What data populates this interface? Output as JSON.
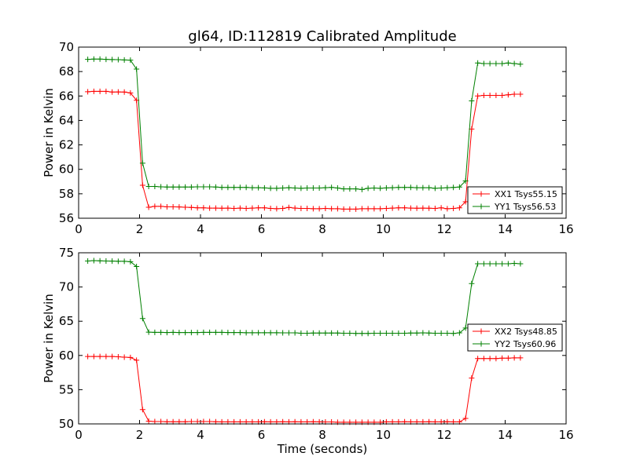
{
  "title": "gl64, ID:112819 Calibrated Amplitude",
  "xlabel": "Time (seconds)",
  "chart_data": [
    {
      "type": "line",
      "ylabel": "Power in Kelvin",
      "xlim": [
        0,
        16
      ],
      "ylim": [
        56,
        70
      ],
      "xticks": [
        "0",
        "2",
        "4",
        "6",
        "8",
        "10",
        "12",
        "14",
        "16"
      ],
      "yticks": [
        "56",
        "58",
        "60",
        "62",
        "64",
        "66",
        "68",
        "70"
      ],
      "legend_position": "lower-right",
      "x": [
        0.3,
        0.5,
        0.7,
        0.9,
        1.1,
        1.3,
        1.5,
        1.7,
        1.9,
        2.1,
        2.3,
        2.5,
        2.7,
        2.9,
        3.1,
        3.3,
        3.5,
        3.7,
        3.9,
        4.1,
        4.3,
        4.5,
        4.7,
        4.9,
        5.1,
        5.3,
        5.5,
        5.7,
        5.9,
        6.1,
        6.3,
        6.5,
        6.7,
        6.9,
        7.1,
        7.3,
        7.5,
        7.7,
        7.9,
        8.1,
        8.3,
        8.5,
        8.7,
        8.9,
        9.1,
        9.3,
        9.5,
        9.7,
        9.9,
        10.1,
        10.3,
        10.5,
        10.7,
        10.9,
        11.1,
        11.3,
        11.5,
        11.7,
        11.9,
        12.1,
        12.3,
        12.5,
        12.7,
        12.9,
        13.1,
        13.3,
        13.5,
        13.7,
        13.9,
        14.1,
        14.3,
        14.5
      ],
      "series": [
        {
          "name": "XX1 Tsys55.15",
          "color": "#ff0000",
          "values": [
            66.35,
            66.38,
            66.38,
            66.38,
            66.32,
            66.33,
            66.32,
            66.25,
            65.65,
            58.7,
            56.9,
            56.97,
            56.97,
            56.93,
            56.93,
            56.92,
            56.9,
            56.88,
            56.85,
            56.85,
            56.83,
            56.83,
            56.82,
            56.83,
            56.8,
            56.83,
            56.8,
            56.83,
            56.85,
            56.85,
            56.8,
            56.78,
            56.8,
            56.88,
            56.83,
            56.8,
            56.8,
            56.78,
            56.78,
            56.8,
            56.78,
            56.78,
            56.75,
            56.75,
            56.75,
            56.78,
            56.78,
            56.78,
            56.78,
            56.8,
            56.83,
            56.85,
            56.85,
            56.83,
            56.82,
            56.83,
            56.82,
            56.8,
            56.85,
            56.78,
            56.8,
            56.85,
            57.35,
            63.3,
            66.0,
            66.05,
            66.05,
            66.05,
            66.05,
            66.1,
            66.15,
            66.15
          ]
        },
        {
          "name": "YY1 Tsys56.53",
          "color": "#008000",
          "values": [
            69.0,
            69.02,
            69.02,
            69.0,
            68.98,
            68.97,
            68.95,
            68.93,
            68.2,
            60.5,
            58.6,
            58.6,
            58.57,
            58.55,
            58.55,
            58.55,
            58.55,
            58.55,
            58.57,
            58.57,
            58.57,
            58.55,
            58.52,
            58.52,
            58.52,
            58.52,
            58.52,
            58.5,
            58.5,
            58.48,
            58.45,
            58.45,
            58.47,
            58.5,
            58.47,
            58.45,
            58.47,
            58.47,
            58.47,
            58.5,
            58.52,
            58.47,
            58.4,
            58.4,
            58.4,
            58.35,
            58.45,
            58.47,
            58.45,
            58.48,
            58.5,
            58.52,
            58.52,
            58.52,
            58.5,
            58.5,
            58.5,
            58.45,
            58.47,
            58.5,
            58.52,
            58.55,
            59.05,
            65.6,
            68.7,
            68.65,
            68.65,
            68.65,
            68.65,
            68.7,
            68.65,
            68.6
          ]
        }
      ]
    },
    {
      "type": "line",
      "ylabel": "Power in Kelvin",
      "xlim": [
        0,
        16
      ],
      "ylim": [
        50,
        75
      ],
      "xticks": [
        "0",
        "2",
        "4",
        "6",
        "8",
        "10",
        "12",
        "14",
        "16"
      ],
      "yticks": [
        "50",
        "55",
        "60",
        "65",
        "70",
        "75"
      ],
      "legend_position": "center-right",
      "x": [
        0.3,
        0.5,
        0.7,
        0.9,
        1.1,
        1.3,
        1.5,
        1.7,
        1.9,
        2.1,
        2.3,
        2.5,
        2.7,
        2.9,
        3.1,
        3.3,
        3.5,
        3.7,
        3.9,
        4.1,
        4.3,
        4.5,
        4.7,
        4.9,
        5.1,
        5.3,
        5.5,
        5.7,
        5.9,
        6.1,
        6.3,
        6.5,
        6.7,
        6.9,
        7.1,
        7.3,
        7.5,
        7.7,
        7.9,
        8.1,
        8.3,
        8.5,
        8.7,
        8.9,
        9.1,
        9.3,
        9.5,
        9.7,
        9.9,
        10.1,
        10.3,
        10.5,
        10.7,
        10.9,
        11.1,
        11.3,
        11.5,
        11.7,
        11.9,
        12.1,
        12.3,
        12.5,
        12.7,
        12.9,
        13.1,
        13.3,
        13.5,
        13.7,
        13.9,
        14.1,
        14.3,
        14.5
      ],
      "series": [
        {
          "name": "XX2 Tsys48.85",
          "color": "#ff0000",
          "values": [
            59.85,
            59.85,
            59.85,
            59.85,
            59.85,
            59.8,
            59.75,
            59.7,
            59.3,
            52.1,
            50.4,
            50.35,
            50.35,
            50.32,
            50.32,
            50.32,
            50.32,
            50.35,
            50.35,
            50.35,
            50.35,
            50.32,
            50.3,
            50.3,
            50.3,
            50.3,
            50.3,
            50.3,
            50.3,
            50.32,
            50.3,
            50.3,
            50.32,
            50.3,
            50.32,
            50.3,
            50.3,
            50.32,
            50.3,
            50.28,
            50.28,
            50.25,
            50.25,
            50.25,
            50.25,
            50.25,
            50.25,
            50.25,
            50.25,
            50.3,
            50.3,
            50.3,
            50.32,
            50.3,
            50.3,
            50.3,
            50.32,
            50.3,
            50.3,
            50.32,
            50.3,
            50.3,
            50.8,
            56.7,
            59.55,
            59.55,
            59.55,
            59.55,
            59.6,
            59.6,
            59.65,
            59.65
          ]
        },
        {
          "name": "YY2 Tsys60.96",
          "color": "#008000",
          "values": [
            73.8,
            73.85,
            73.82,
            73.8,
            73.78,
            73.76,
            73.75,
            73.7,
            73.0,
            65.4,
            63.4,
            63.38,
            63.38,
            63.35,
            63.38,
            63.35,
            63.35,
            63.35,
            63.35,
            63.38,
            63.38,
            63.38,
            63.38,
            63.35,
            63.35,
            63.35,
            63.32,
            63.32,
            63.32,
            63.32,
            63.32,
            63.32,
            63.3,
            63.3,
            63.3,
            63.25,
            63.25,
            63.27,
            63.27,
            63.27,
            63.27,
            63.27,
            63.25,
            63.25,
            63.22,
            63.22,
            63.22,
            63.25,
            63.25,
            63.25,
            63.25,
            63.25,
            63.25,
            63.28,
            63.28,
            63.3,
            63.28,
            63.25,
            63.25,
            63.25,
            63.22,
            63.3,
            64.0,
            70.5,
            73.4,
            73.4,
            73.4,
            73.4,
            73.4,
            73.4,
            73.45,
            73.4
          ]
        }
      ]
    }
  ]
}
